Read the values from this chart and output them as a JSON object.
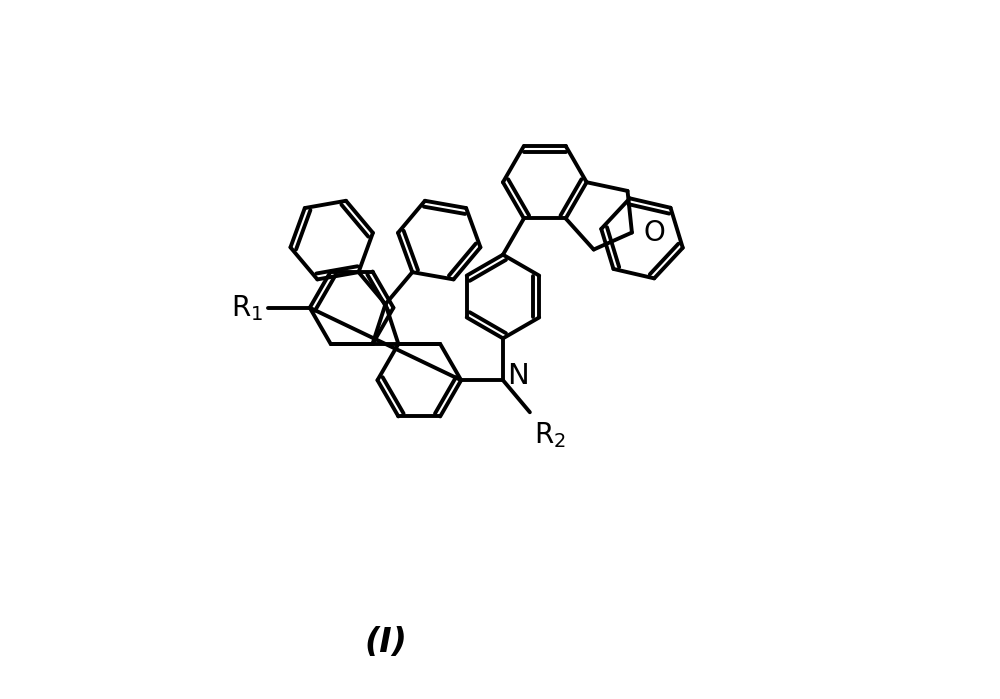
{
  "title": "(I)",
  "bg_color": "#ffffff",
  "line_color": "#000000",
  "line_width": 2.8,
  "font_size_label": 20,
  "font_size_title": 24,
  "dbo": 0.06
}
